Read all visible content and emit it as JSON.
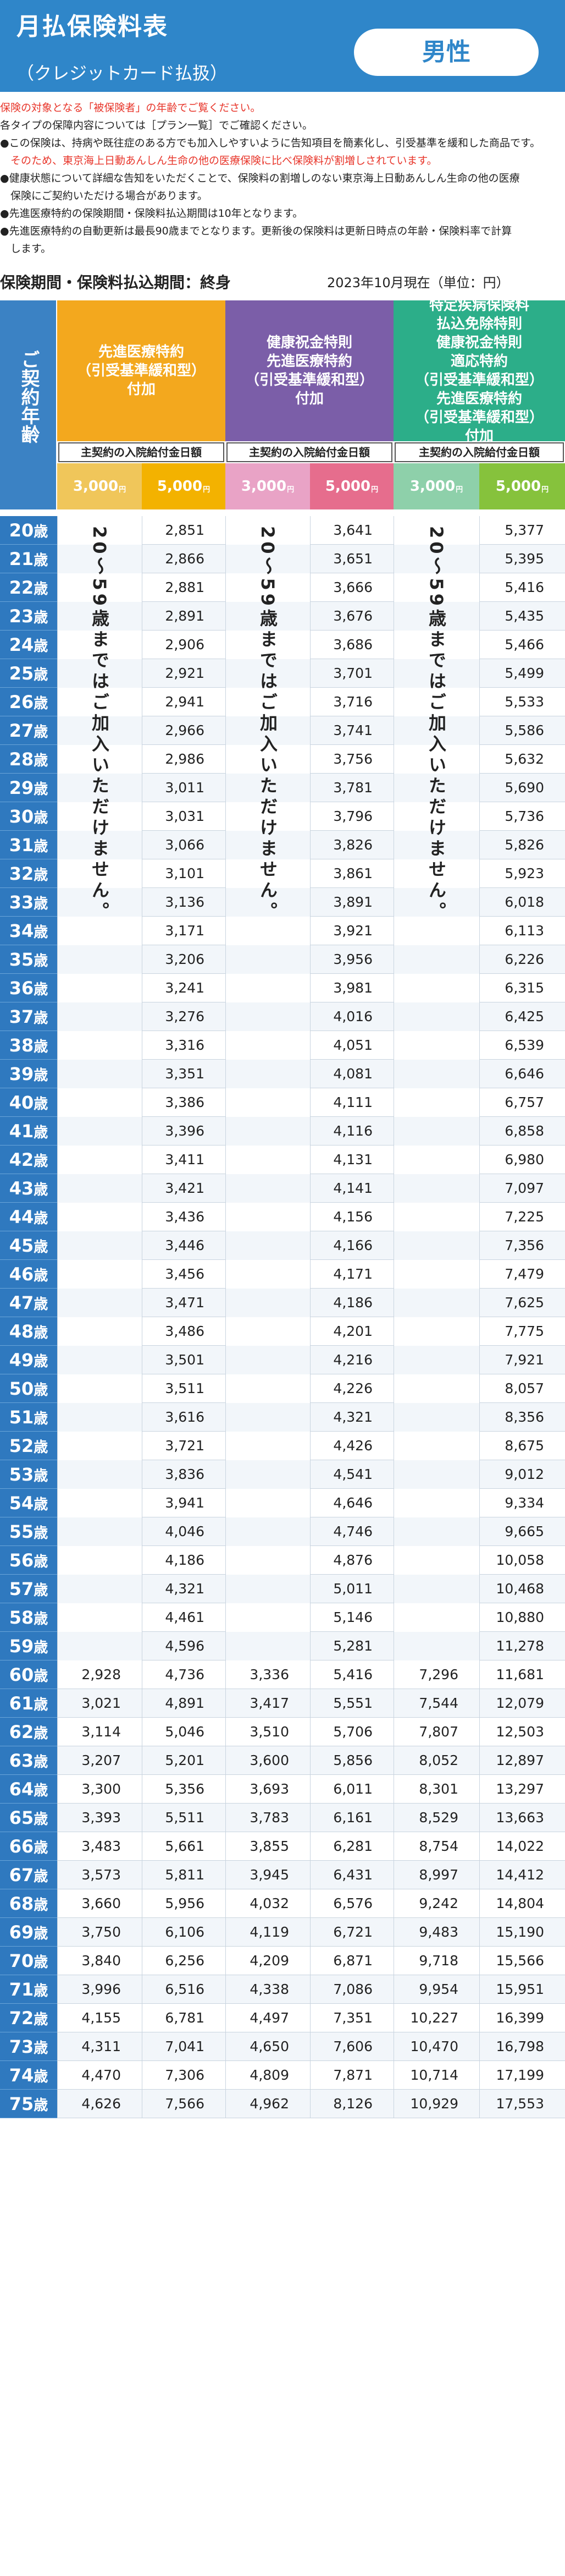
{
  "header": {
    "title": "月払保険料表",
    "subtitle": "（クレジットカード払扱）",
    "gender": "男性",
    "colors": {
      "brand": "#2f86c9",
      "accent_red": "#e8352a"
    }
  },
  "notes": [
    {
      "text": "保険の対象となる「被保険者」の年齢でご覧ください。",
      "color": "red"
    },
    {
      "text": "各タイプの保障内容については［プラン一覧］でご確認ください。",
      "color": "black"
    },
    {
      "text": "●この保険は、持病や既往症のある方でも加入しやすいように告知項目を簡素化し、引受基準を緩和した商品です。",
      "color": "black"
    },
    {
      "text": "　そのため、東京海上日動あんしん生命の他の医療保険に比べ保険料が割増しされています。",
      "color": "red"
    },
    {
      "text": "●健康状態について詳細な告知をいただくことで、保険料の割増しのない東京海上日動あんしん生命の他の医療",
      "color": "black"
    },
    {
      "text": "　保険にご契約いただける場合があります。",
      "color": "black"
    },
    {
      "text": "●先進医療特約の保険期間・保険料払込期間は10年となります。",
      "color": "black"
    },
    {
      "text": "●先進医療特約の自動更新は最長90歳までとなります。更新後の保険料は更新日時点の年齢・保険料率で計算",
      "color": "black"
    },
    {
      "text": "　します。",
      "color": "black"
    }
  ],
  "info": {
    "period": "保険期間・保険料払込期間：終身",
    "as_of": "2023年10月現在（単位：円）"
  },
  "table": {
    "age_header": "ご契約年齢",
    "age_suffix": "歳",
    "groups": [
      {
        "title": "先進医療特約\n（引受基準緩和型）\n付加",
        "color": "#f3a81e",
        "label_bar": "主契約の入院給付金日額",
        "tiers": [
          {
            "label": "3,000",
            "unit": "円",
            "bg": "#f5d88a"
          },
          {
            "label": "5,000",
            "unit": "円",
            "bg": "#f6c100"
          }
        ],
        "notice": "20〜59歳まではご加入いただけません。"
      },
      {
        "title": "健康祝金特則\n先進医療特約\n（引受基準緩和型）\n付加",
        "color": "#7b5ea8",
        "label_bar": "主契約の入院給付金日額",
        "tiers": [
          {
            "label": "3,000",
            "unit": "円",
            "bg": "#e7a7c9"
          },
          {
            "label": "5,000",
            "unit": "円",
            "bg": "#e2708f"
          }
        ],
        "notice": "20〜59歳まではご加入いただけません。"
      },
      {
        "title": "特定疾病保険料\n払込免除特則\n健康祝金特則\n適応特約\n（引受基準緩和型）\n先進医療特約\n（引受基準緩和型）\n付加",
        "color": "#2cae89",
        "label_bar": "主契約の入院給付金日額",
        "tiers": [
          {
            "label": "3,000",
            "unit": "円",
            "bg": "#9fd5b2"
          },
          {
            "label": "5,000",
            "unit": "円",
            "bg": "#8cc63f"
          }
        ],
        "notice": "20〜59歳まではご加入いただけません。"
      }
    ],
    "rows": [
      {
        "age": "20",
        "v": [
          "",
          "2,851",
          "",
          "3,641",
          "",
          "5,377"
        ]
      },
      {
        "age": "21",
        "v": [
          "",
          "2,866",
          "",
          "3,651",
          "",
          "5,395"
        ]
      },
      {
        "age": "22",
        "v": [
          "",
          "2,881",
          "",
          "3,666",
          "",
          "5,416"
        ]
      },
      {
        "age": "23",
        "v": [
          "",
          "2,891",
          "",
          "3,676",
          "",
          "5,435"
        ]
      },
      {
        "age": "24",
        "v": [
          "",
          "2,906",
          "",
          "3,686",
          "",
          "5,466"
        ]
      },
      {
        "age": "25",
        "v": [
          "",
          "2,921",
          "",
          "3,701",
          "",
          "5,499"
        ]
      },
      {
        "age": "26",
        "v": [
          "",
          "2,941",
          "",
          "3,716",
          "",
          "5,533"
        ]
      },
      {
        "age": "27",
        "v": [
          "",
          "2,966",
          "",
          "3,741",
          "",
          "5,586"
        ]
      },
      {
        "age": "28",
        "v": [
          "",
          "2,986",
          "",
          "3,756",
          "",
          "5,632"
        ]
      },
      {
        "age": "29",
        "v": [
          "",
          "3,011",
          "",
          "3,781",
          "",
          "5,690"
        ]
      },
      {
        "age": "30",
        "v": [
          "",
          "3,031",
          "",
          "3,796",
          "",
          "5,736"
        ]
      },
      {
        "age": "31",
        "v": [
          "",
          "3,066",
          "",
          "3,826",
          "",
          "5,826"
        ]
      },
      {
        "age": "32",
        "v": [
          "",
          "3,101",
          "",
          "3,861",
          "",
          "5,923"
        ]
      },
      {
        "age": "33",
        "v": [
          "",
          "3,136",
          "",
          "3,891",
          "",
          "6,018"
        ]
      },
      {
        "age": "34",
        "v": [
          "",
          "3,171",
          "",
          "3,921",
          "",
          "6,113"
        ]
      },
      {
        "age": "35",
        "v": [
          "",
          "3,206",
          "",
          "3,956",
          "",
          "6,226"
        ]
      },
      {
        "age": "36",
        "v": [
          "",
          "3,241",
          "",
          "3,981",
          "",
          "6,315"
        ]
      },
      {
        "age": "37",
        "v": [
          "",
          "3,276",
          "",
          "4,016",
          "",
          "6,425"
        ]
      },
      {
        "age": "38",
        "v": [
          "",
          "3,316",
          "",
          "4,051",
          "",
          "6,539"
        ]
      },
      {
        "age": "39",
        "v": [
          "",
          "3,351",
          "",
          "4,081",
          "",
          "6,646"
        ]
      },
      {
        "age": "40",
        "v": [
          "",
          "3,386",
          "",
          "4,111",
          "",
          "6,757"
        ]
      },
      {
        "age": "41",
        "v": [
          "",
          "3,396",
          "",
          "4,116",
          "",
          "6,858"
        ]
      },
      {
        "age": "42",
        "v": [
          "",
          "3,411",
          "",
          "4,131",
          "",
          "6,980"
        ]
      },
      {
        "age": "43",
        "v": [
          "",
          "3,421",
          "",
          "4,141",
          "",
          "7,097"
        ]
      },
      {
        "age": "44",
        "v": [
          "",
          "3,436",
          "",
          "4,156",
          "",
          "7,225"
        ]
      },
      {
        "age": "45",
        "v": [
          "",
          "3,446",
          "",
          "4,166",
          "",
          "7,356"
        ]
      },
      {
        "age": "46",
        "v": [
          "",
          "3,456",
          "",
          "4,171",
          "",
          "7,479"
        ]
      },
      {
        "age": "47",
        "v": [
          "",
          "3,471",
          "",
          "4,186",
          "",
          "7,625"
        ]
      },
      {
        "age": "48",
        "v": [
          "",
          "3,486",
          "",
          "4,201",
          "",
          "7,775"
        ]
      },
      {
        "age": "49",
        "v": [
          "",
          "3,501",
          "",
          "4,216",
          "",
          "7,921"
        ]
      },
      {
        "age": "50",
        "v": [
          "",
          "3,511",
          "",
          "4,226",
          "",
          "8,057"
        ]
      },
      {
        "age": "51",
        "v": [
          "",
          "3,616",
          "",
          "4,321",
          "",
          "8,356"
        ]
      },
      {
        "age": "52",
        "v": [
          "",
          "3,721",
          "",
          "4,426",
          "",
          "8,675"
        ]
      },
      {
        "age": "53",
        "v": [
          "",
          "3,836",
          "",
          "4,541",
          "",
          "9,012"
        ]
      },
      {
        "age": "54",
        "v": [
          "",
          "3,941",
          "",
          "4,646",
          "",
          "9,334"
        ]
      },
      {
        "age": "55",
        "v": [
          "",
          "4,046",
          "",
          "4,746",
          "",
          "9,665"
        ]
      },
      {
        "age": "56",
        "v": [
          "",
          "4,186",
          "",
          "4,876",
          "",
          "10,058"
        ]
      },
      {
        "age": "57",
        "v": [
          "",
          "4,321",
          "",
          "5,011",
          "",
          "10,468"
        ]
      },
      {
        "age": "58",
        "v": [
          "",
          "4,461",
          "",
          "5,146",
          "",
          "10,880"
        ]
      },
      {
        "age": "59",
        "v": [
          "",
          "4,596",
          "",
          "5,281",
          "",
          "11,278"
        ]
      },
      {
        "age": "60",
        "v": [
          "2,928",
          "4,736",
          "3,336",
          "5,416",
          "7,296",
          "11,681"
        ]
      },
      {
        "age": "61",
        "v": [
          "3,021",
          "4,891",
          "3,417",
          "5,551",
          "7,544",
          "12,079"
        ]
      },
      {
        "age": "62",
        "v": [
          "3,114",
          "5,046",
          "3,510",
          "5,706",
          "7,807",
          "12,503"
        ]
      },
      {
        "age": "63",
        "v": [
          "3,207",
          "5,201",
          "3,600",
          "5,856",
          "8,052",
          "12,897"
        ]
      },
      {
        "age": "64",
        "v": [
          "3,300",
          "5,356",
          "3,693",
          "6,011",
          "8,301",
          "13,297"
        ]
      },
      {
        "age": "65",
        "v": [
          "3,393",
          "5,511",
          "3,783",
          "6,161",
          "8,529",
          "13,663"
        ]
      },
      {
        "age": "66",
        "v": [
          "3,483",
          "5,661",
          "3,855",
          "6,281",
          "8,754",
          "14,022"
        ]
      },
      {
        "age": "67",
        "v": [
          "3,573",
          "5,811",
          "3,945",
          "6,431",
          "8,997",
          "14,412"
        ]
      },
      {
        "age": "68",
        "v": [
          "3,660",
          "5,956",
          "4,032",
          "6,576",
          "9,242",
          "14,804"
        ]
      },
      {
        "age": "69",
        "v": [
          "3,750",
          "6,106",
          "4,119",
          "6,721",
          "9,483",
          "15,190"
        ]
      },
      {
        "age": "70",
        "v": [
          "3,840",
          "6,256",
          "4,209",
          "6,871",
          "9,718",
          "15,566"
        ]
      },
      {
        "age": "71",
        "v": [
          "3,996",
          "6,516",
          "4,338",
          "7,086",
          "9,954",
          "15,951"
        ]
      },
      {
        "age": "72",
        "v": [
          "4,155",
          "6,781",
          "4,497",
          "7,351",
          "10,227",
          "16,399"
        ]
      },
      {
        "age": "73",
        "v": [
          "4,311",
          "7,041",
          "4,650",
          "7,606",
          "10,470",
          "16,798"
        ]
      },
      {
        "age": "74",
        "v": [
          "4,470",
          "7,306",
          "4,809",
          "7,871",
          "10,714",
          "17,199"
        ]
      },
      {
        "age": "75",
        "v": [
          "4,626",
          "7,566",
          "4,962",
          "8,126",
          "10,929",
          "17,553"
        ]
      }
    ]
  }
}
